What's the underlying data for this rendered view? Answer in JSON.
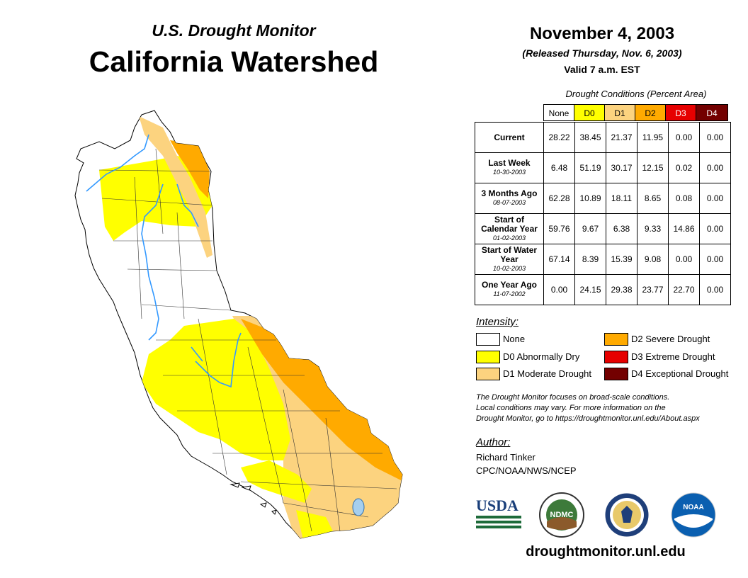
{
  "header": {
    "subtitle": "U.S. Drought Monitor",
    "title": "California Watershed",
    "date": "November 4, 2003",
    "released": "(Released Thursday, Nov. 6, 2003)",
    "valid": "Valid 7 a.m. EST"
  },
  "table": {
    "caption": "Drought Conditions (Percent Area)",
    "columns": [
      "None",
      "D0",
      "D1",
      "D2",
      "D3",
      "D4"
    ],
    "column_colors": [
      "#ffffff",
      "#ffff00",
      "#fcd37f",
      "#ffaa00",
      "#e60000",
      "#730000"
    ],
    "rows": [
      {
        "label": "Current",
        "date": "",
        "values": [
          "28.22",
          "38.45",
          "21.37",
          "11.95",
          "0.00",
          "0.00"
        ]
      },
      {
        "label": "Last Week",
        "date": "10-30-2003",
        "values": [
          "6.48",
          "51.19",
          "30.17",
          "12.15",
          "0.02",
          "0.00"
        ]
      },
      {
        "label": "3 Months Ago",
        "date": "08-07-2003",
        "values": [
          "62.28",
          "10.89",
          "18.11",
          "8.65",
          "0.08",
          "0.00"
        ]
      },
      {
        "label": "Start of Calendar Year",
        "date": "01-02-2003",
        "values": [
          "59.76",
          "9.67",
          "6.38",
          "9.33",
          "14.86",
          "0.00"
        ]
      },
      {
        "label": "Start of Water Year",
        "date": "10-02-2003",
        "values": [
          "67.14",
          "8.39",
          "15.39",
          "9.08",
          "0.00",
          "0.00"
        ]
      },
      {
        "label": "One Year Ago",
        "date": "11-07-2002",
        "values": [
          "0.00",
          "24.15",
          "29.38",
          "23.77",
          "22.70",
          "0.00"
        ]
      }
    ]
  },
  "legend": {
    "title": "Intensity:",
    "items": [
      {
        "label": "None",
        "color": "#ffffff"
      },
      {
        "label": "D0 Abnormally Dry",
        "color": "#ffff00"
      },
      {
        "label": "D1 Moderate Drought",
        "color": "#fcd37f"
      },
      {
        "label": "D2 Severe Drought",
        "color": "#ffaa00"
      },
      {
        "label": "D3 Extreme Drought",
        "color": "#e60000"
      },
      {
        "label": "D4 Exceptional Drought",
        "color": "#730000"
      }
    ]
  },
  "note": {
    "line1": "The Drought Monitor focuses on broad-scale conditions.",
    "line2": "Local conditions may vary. For more information on the",
    "line3": "Drought Monitor, go to https://droughtmonitor.unl.edu/About.aspx"
  },
  "author": {
    "label": "Author:",
    "name": "Richard Tinker",
    "org": "CPC/NOAA/NWS/NCEP"
  },
  "logos": {
    "usda": "USDA",
    "ndmc": "NDMC",
    "noaa": "NOAA"
  },
  "url": "droughtmonitor.unl.edu",
  "map": {
    "colors": {
      "none": "#ffffff",
      "d0": "#ffff00",
      "d1": "#fcd37f",
      "d2": "#ffaa00",
      "river": "#3399ff",
      "lake": "#a6cfee"
    }
  }
}
